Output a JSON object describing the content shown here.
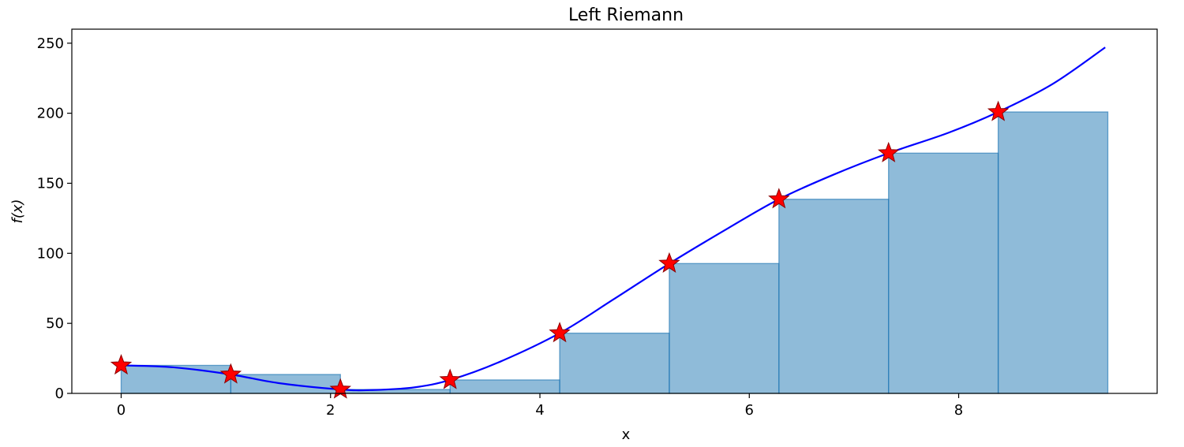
{
  "chart_data": {
    "type": "bar",
    "title": "Left Riemann",
    "xlabel": "x",
    "ylabel": "f(x)",
    "xlim": [
      -0.4712,
      9.896
    ],
    "ylim": [
      0,
      260
    ],
    "xticks": [
      0,
      2,
      4,
      6,
      8
    ],
    "yticks": [
      0,
      50,
      100,
      150,
      200,
      250
    ],
    "grid": false,
    "bars": {
      "name": "Left Riemann rectangles",
      "width": 1.0472,
      "x_left": [
        0,
        1.0472,
        2.0944,
        3.1416,
        4.1888,
        5.236,
        6.2832,
        7.3304,
        8.3776
      ],
      "heights": [
        20,
        13.5,
        2.8,
        9.6,
        43,
        92.7,
        138.6,
        171.5,
        200.9
      ],
      "color": "#1f77b4",
      "opacity": 0.5
    },
    "markers": {
      "name": "left endpoints",
      "symbol": "star",
      "color": "#ff0000",
      "x": [
        0,
        1.0472,
        2.0944,
        3.1416,
        4.1888,
        5.236,
        6.2832,
        7.3304,
        8.3776
      ],
      "y": [
        20,
        13.5,
        2.8,
        9.6,
        43,
        92.7,
        138.6,
        171.5,
        200.9
      ]
    },
    "curve": {
      "name": "f(x)",
      "color": "#0000ff",
      "x": [
        0,
        0.5,
        1.0472,
        1.5,
        2.0944,
        2.4,
        2.8,
        3.1416,
        3.6,
        4.1888,
        4.7,
        5.236,
        5.8,
        6.2832,
        6.8,
        7.3304,
        7.9,
        8.3776,
        8.9,
        9.4
      ],
      "y": [
        20,
        18.6,
        13.5,
        7.4,
        2.8,
        2.4,
        4.3,
        9.6,
        22,
        43,
        67,
        92.7,
        118,
        138.6,
        156,
        171.5,
        186,
        200.9,
        221,
        247
      ]
    }
  }
}
